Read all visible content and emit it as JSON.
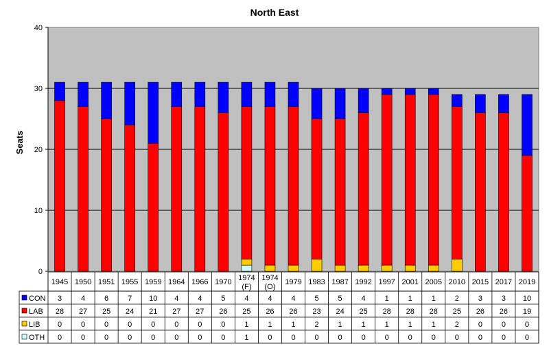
{
  "chart_data": {
    "type": "bar",
    "stacked": true,
    "title": "North East",
    "ylabel": "Seats",
    "xlabel": "",
    "ylim": [
      0,
      40
    ],
    "yticks": [
      0,
      10,
      20,
      30,
      40
    ],
    "grid": true,
    "legend": "data-table",
    "categories": [
      "1945",
      "1950",
      "1951",
      "1955",
      "1959",
      "1964",
      "1966",
      "1970",
      [
        "1974",
        "(F)"
      ],
      [
        "1974",
        "(O)"
      ],
      "1979",
      "1983",
      "1987",
      "1992",
      "1997",
      "2001",
      "2005",
      "2010",
      "2015",
      "2017",
      "2019"
    ],
    "series": [
      {
        "name": "CON",
        "color": "#0000ff",
        "values": [
          3,
          4,
          6,
          7,
          10,
          4,
          4,
          5,
          4,
          4,
          4,
          5,
          5,
          4,
          1,
          1,
          1,
          2,
          3,
          3,
          10
        ]
      },
      {
        "name": "LAB",
        "color": "#ff0000",
        "values": [
          28,
          27,
          25,
          24,
          21,
          27,
          27,
          26,
          25,
          26,
          26,
          23,
          24,
          25,
          28,
          28,
          28,
          25,
          26,
          26,
          19
        ]
      },
      {
        "name": "LIB",
        "color": "#ffcc00",
        "values": [
          0,
          0,
          0,
          0,
          0,
          0,
          0,
          0,
          1,
          1,
          1,
          2,
          1,
          1,
          1,
          1,
          1,
          2,
          0,
          0,
          0
        ]
      },
      {
        "name": "OTH",
        "color": "#ccffff",
        "values": [
          0,
          0,
          0,
          0,
          0,
          0,
          0,
          0,
          1,
          0,
          0,
          0,
          0,
          0,
          0,
          0,
          0,
          0,
          0,
          0,
          0
        ]
      }
    ],
    "stack_order_bottom_to_top": [
      "OTH",
      "LIB",
      "LAB",
      "CON"
    ],
    "plot_background": "#c0c0c0"
  }
}
